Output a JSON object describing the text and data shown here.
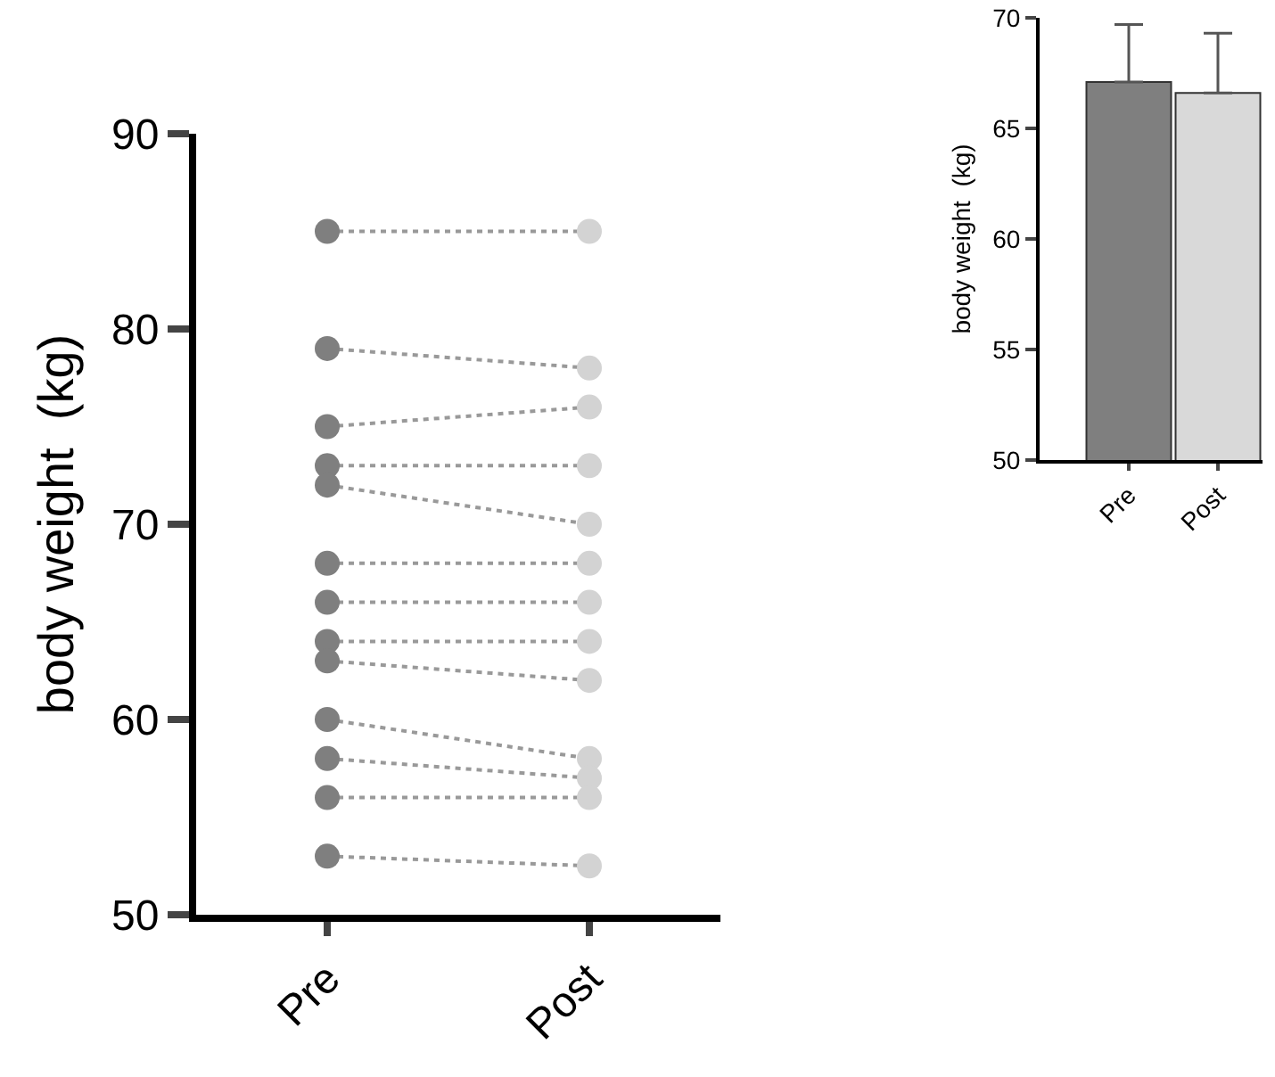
{
  "chart_data": [
    {
      "type": "line",
      "ylabel": "body weight  (kg)",
      "categories": [
        "Pre",
        "Post"
      ],
      "ylim": [
        50,
        90
      ],
      "yticks": [
        50,
        60,
        70,
        80,
        90
      ],
      "marker": "circle",
      "line_style": "dotted",
      "series": [
        {
          "color": "#999999",
          "colors": [
            "#7f7f7f",
            "#d3d3d3"
          ],
          "values": [
            85,
            85
          ]
        },
        {
          "color": "#999999",
          "colors": [
            "#7f7f7f",
            "#d3d3d3"
          ],
          "values": [
            79,
            78
          ]
        },
        {
          "color": "#999999",
          "colors": [
            "#7f7f7f",
            "#d3d3d3"
          ],
          "values": [
            75,
            76
          ]
        },
        {
          "color": "#999999",
          "colors": [
            "#7f7f7f",
            "#d3d3d3"
          ],
          "values": [
            73,
            73
          ]
        },
        {
          "color": "#999999",
          "colors": [
            "#7f7f7f",
            "#d3d3d3"
          ],
          "values": [
            72,
            70
          ]
        },
        {
          "color": "#999999",
          "colors": [
            "#7f7f7f",
            "#d3d3d3"
          ],
          "values": [
            68,
            68
          ]
        },
        {
          "color": "#999999",
          "colors": [
            "#7f7f7f",
            "#d3d3d3"
          ],
          "values": [
            66,
            66
          ]
        },
        {
          "color": "#999999",
          "colors": [
            "#7f7f7f",
            "#d3d3d3"
          ],
          "values": [
            64,
            64
          ]
        },
        {
          "color": "#999999",
          "colors": [
            "#7f7f7f",
            "#d3d3d3"
          ],
          "values": [
            63,
            62
          ]
        },
        {
          "color": "#999999",
          "colors": [
            "#7f7f7f",
            "#d3d3d3"
          ],
          "values": [
            60,
            58
          ]
        },
        {
          "color": "#999999",
          "colors": [
            "#7f7f7f",
            "#d3d3d3"
          ],
          "values": [
            58,
            57
          ]
        },
        {
          "color": "#999999",
          "colors": [
            "#7f7f7f",
            "#d3d3d3"
          ],
          "values": [
            56,
            56
          ]
        },
        {
          "color": "#999999",
          "colors": [
            "#7f7f7f",
            "#d3d3d3"
          ],
          "values": [
            53,
            52.5
          ]
        }
      ]
    },
    {
      "type": "bar",
      "ylabel": "body weight  (kg)",
      "categories": [
        "Pre",
        "Post"
      ],
      "values": [
        67.1,
        66.6
      ],
      "colors": [
        "#7f7f7f",
        "#d9d9d9"
      ],
      "errors": [
        [
          67.1,
          69.7
        ],
        [
          66.6,
          69.3
        ]
      ],
      "ylim": [
        50,
        70
      ],
      "yticks": [
        50,
        55,
        60,
        65,
        70
      ]
    }
  ]
}
